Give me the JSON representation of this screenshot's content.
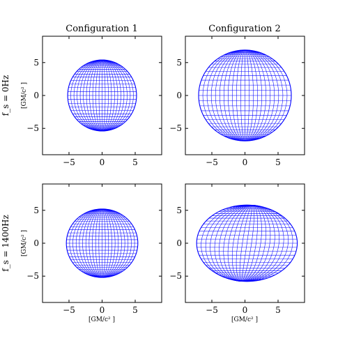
{
  "chart_data": [
    {
      "type": "wireframe",
      "title": "Configuration 1",
      "row_label": "f_s = 0Hz",
      "ylabel": "[GM/c² ]",
      "xlabel": "",
      "xlim": [
        -9,
        9
      ],
      "ylim": [
        -9,
        9
      ],
      "xticks": [
        -5,
        0,
        5
      ],
      "yticks": [
        -5,
        0,
        5
      ],
      "xtick_labels": [
        "−5",
        "0",
        "5"
      ],
      "ytick_labels": [
        "−5",
        "0",
        "5"
      ],
      "shape": {
        "center_x": 0.0,
        "center_y": 0.0,
        "radius_x": 5.2,
        "radius_y": 5.4,
        "skew": 0.0,
        "pole_ring_spacing": 0.35
      }
    },
    {
      "type": "wireframe",
      "title": "Configuration 2",
      "row_label": "",
      "ylabel": "",
      "xlabel": "",
      "xlim": [
        -9,
        9
      ],
      "ylim": [
        -9,
        9
      ],
      "xticks": [
        -5,
        0,
        5
      ],
      "yticks": [
        -5,
        0,
        5
      ],
      "xtick_labels": [
        "−5",
        "0",
        "5"
      ],
      "ytick_labels": [
        "−5",
        "0",
        "5"
      ],
      "shape": {
        "center_x": 0.0,
        "center_y": 0.0,
        "radius_x": 7.0,
        "radius_y": 6.9,
        "skew": 0.0,
        "pole_ring_spacing": 0.4
      }
    },
    {
      "type": "wireframe",
      "title": "",
      "row_label": "f_s = 1400Hz",
      "ylabel": "[GM/c² ]",
      "xlabel": "[GM/c² ]",
      "xlim": [
        -9,
        9
      ],
      "ylim": [
        -9,
        9
      ],
      "xticks": [
        -5,
        0,
        5
      ],
      "yticks": [
        -5,
        0,
        5
      ],
      "xtick_labels": [
        "−5",
        "0",
        "5"
      ],
      "ytick_labels": [
        "−5",
        "0",
        "5"
      ],
      "shape": {
        "center_x": 0.0,
        "center_y": 0.0,
        "radius_x": 5.4,
        "radius_y": 5.2,
        "skew": 0.0,
        "pole_ring_spacing": 0.25
      }
    },
    {
      "type": "wireframe",
      "title": "",
      "row_label": "",
      "ylabel": "",
      "xlabel": "[GM/c² ]",
      "xlim": [
        -9,
        9
      ],
      "ylim": [
        -9,
        9
      ],
      "xticks": [
        -5,
        0,
        5
      ],
      "yticks": [
        -5,
        0,
        5
      ],
      "xtick_labels": [
        "−5",
        "0",
        "5"
      ],
      "ytick_labels": [
        "−5",
        "0",
        "5"
      ],
      "shape": {
        "center_x": 0.3,
        "center_y": 0.0,
        "radius_x": 7.6,
        "radius_y": 5.8,
        "skew": 1.4,
        "pole_ring_spacing": 0.3
      }
    }
  ],
  "colors": {
    "mesh": "#0000ff",
    "axes": "#000000",
    "background": "#ffffff"
  }
}
